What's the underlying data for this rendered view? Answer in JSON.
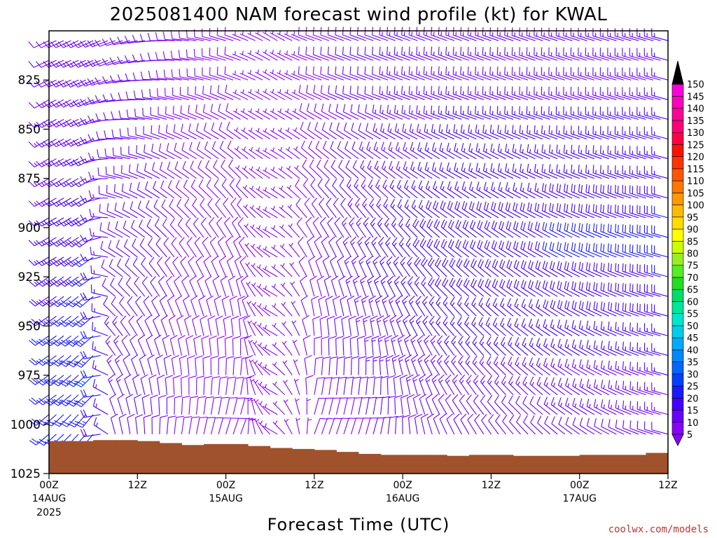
{
  "chart_data": {
    "type": "wind-barb-time-height",
    "title": "2025081400 NAM forecast wind profile (kt) for KWAL",
    "xlabel": "Forecast Time (UTC)",
    "ylabel": "",
    "credit": "coolwx.com/models",
    "y_axis": {
      "quantity": "pressure (mb)",
      "range": [
        1025,
        800
      ],
      "ticks": [
        "825",
        "850",
        "875",
        "900",
        "925",
        "950",
        "975",
        "1000",
        "1025"
      ]
    },
    "x_axis": {
      "quantity": "forecast hour",
      "range": [
        0,
        84
      ],
      "ticks": [
        {
          "hour": 0,
          "time": "00Z",
          "date": "14AUG",
          "year": "2025"
        },
        {
          "hour": 12,
          "time": "12Z",
          "date": "",
          "year": ""
        },
        {
          "hour": 24,
          "time": "00Z",
          "date": "15AUG",
          "year": ""
        },
        {
          "hour": 36,
          "time": "12Z",
          "date": "",
          "year": ""
        },
        {
          "hour": 48,
          "time": "00Z",
          "date": "16AUG",
          "year": ""
        },
        {
          "hour": 60,
          "time": "12Z",
          "date": "",
          "year": ""
        },
        {
          "hour": 72,
          "time": "00Z",
          "date": "17AUG",
          "year": ""
        },
        {
          "hour": 84,
          "time": "12Z",
          "date": "",
          "year": ""
        }
      ]
    },
    "surface_pressure": {
      "hours": [
        0,
        3,
        6,
        9,
        12,
        15,
        18,
        21,
        24,
        27,
        30,
        33,
        36,
        39,
        42,
        45,
        48,
        51,
        54,
        57,
        60,
        63,
        66,
        69,
        72,
        75,
        78,
        81,
        84
      ],
      "values_mb": [
        1008.5,
        1008.5,
        1008,
        1008,
        1008.5,
        1009.5,
        1010.5,
        1010,
        1010,
        1011,
        1012,
        1012.5,
        1013,
        1014,
        1015,
        1015.5,
        1015.5,
        1015.5,
        1016,
        1015.5,
        1015.5,
        1016,
        1016,
        1016,
        1015.5,
        1015.5,
        1015.5,
        1014.5,
        1014.5
      ],
      "color": "#a0522d"
    },
    "wind_barbs": {
      "units": "kt",
      "hour_step": 1,
      "levels_mb": [
        805,
        815,
        825,
        835,
        845,
        855,
        865,
        875,
        885,
        895,
        905,
        915,
        925,
        935,
        945,
        955,
        965,
        975,
        985,
        995,
        1005
      ],
      "profile_time_hours": [
        0,
        6,
        9,
        16,
        26,
        31,
        36,
        44,
        54,
        84
      ],
      "profile_direction_deg": [
        [
          245,
          245,
          250,
          270,
          290,
          300,
          290,
          290,
          290,
          285
        ],
        [
          245,
          245,
          250,
          270,
          290,
          300,
          290,
          290,
          290,
          285
        ],
        [
          245,
          245,
          255,
          275,
          290,
          300,
          290,
          290,
          290,
          285
        ],
        [
          240,
          245,
          260,
          280,
          295,
          300,
          295,
          290,
          290,
          285
        ],
        [
          240,
          245,
          265,
          285,
          300,
          300,
          300,
          295,
          290,
          285
        ],
        [
          240,
          245,
          270,
          290,
          305,
          300,
          305,
          300,
          295,
          285
        ],
        [
          240,
          245,
          275,
          295,
          310,
          300,
          310,
          305,
          300,
          285
        ],
        [
          240,
          240,
          280,
          300,
          315,
          300,
          315,
          310,
          300,
          285
        ],
        [
          240,
          240,
          285,
          305,
          320,
          300,
          320,
          315,
          305,
          285
        ],
        [
          240,
          240,
          290,
          310,
          325,
          300,
          325,
          320,
          305,
          285
        ],
        [
          240,
          235,
          295,
          315,
          330,
          300,
          330,
          325,
          310,
          285
        ],
        [
          240,
          235,
          300,
          320,
          335,
          300,
          335,
          330,
          310,
          285
        ],
        [
          235,
          235,
          305,
          325,
          340,
          300,
          340,
          335,
          315,
          285
        ],
        [
          235,
          230,
          310,
          330,
          345,
          300,
          345,
          340,
          315,
          285
        ],
        [
          235,
          230,
          315,
          335,
          350,
          300,
          350,
          345,
          320,
          285
        ],
        [
          235,
          230,
          320,
          340,
          355,
          300,
          355,
          350,
          320,
          285
        ],
        [
          235,
          225,
          325,
          345,
          0,
          300,
          0,
          355,
          325,
          285
        ],
        [
          235,
          225,
          330,
          350,
          5,
          300,
          5,
          0,
          325,
          285
        ],
        [
          235,
          225,
          335,
          355,
          10,
          300,
          10,
          5,
          330,
          285
        ],
        [
          230,
          220,
          340,
          0,
          15,
          300,
          15,
          10,
          330,
          285
        ],
        [
          230,
          220,
          345,
          5,
          20,
          300,
          20,
          15,
          335,
          285
        ]
      ],
      "profile_speed_kt": [
        [
          12,
          14,
          12,
          10,
          8,
          5,
          8,
          12,
          14,
          15
        ],
        [
          12,
          14,
          12,
          10,
          8,
          5,
          8,
          12,
          14,
          15
        ],
        [
          12,
          14,
          12,
          10,
          8,
          5,
          8,
          12,
          14,
          15
        ],
        [
          12,
          15,
          12,
          10,
          8,
          5,
          8,
          12,
          14,
          15
        ],
        [
          13,
          15,
          12,
          10,
          8,
          5,
          8,
          12,
          15,
          16
        ],
        [
          13,
          15,
          12,
          10,
          8,
          5,
          8,
          12,
          15,
          16
        ],
        [
          13,
          16,
          12,
          10,
          8,
          5,
          8,
          13,
          16,
          17
        ],
        [
          14,
          16,
          12,
          10,
          8,
          5,
          8,
          13,
          16,
          17
        ],
        [
          14,
          17,
          12,
          10,
          9,
          5,
          9,
          14,
          17,
          18
        ],
        [
          15,
          18,
          12,
          10,
          9,
          5,
          9,
          14,
          18,
          20
        ],
        [
          15,
          19,
          12,
          10,
          9,
          5,
          9,
          15,
          19,
          21
        ],
        [
          16,
          20,
          12,
          10,
          9,
          5,
          9,
          15,
          19,
          21
        ],
        [
          17,
          21,
          12,
          10,
          9,
          5,
          9,
          15,
          19,
          20
        ],
        [
          18,
          22,
          12,
          10,
          9,
          5,
          9,
          15,
          18,
          19
        ],
        [
          19,
          23,
          12,
          10,
          9,
          5,
          9,
          14,
          17,
          18
        ],
        [
          20,
          24,
          13,
          10,
          9,
          5,
          9,
          14,
          16,
          17
        ],
        [
          21,
          24,
          13,
          10,
          9,
          5,
          9,
          13,
          15,
          16
        ],
        [
          22,
          25,
          13,
          10,
          9,
          5,
          9,
          13,
          14,
          15
        ],
        [
          22,
          24,
          13,
          10,
          9,
          5,
          9,
          12,
          13,
          14
        ],
        [
          21,
          23,
          12,
          10,
          8,
          5,
          8,
          11,
          12,
          13
        ],
        [
          20,
          22,
          12,
          10,
          8,
          5,
          8,
          10,
          11,
          12
        ]
      ]
    },
    "colorbar": {
      "units": "kt",
      "labels": [
        "5",
        "10",
        "15",
        "20",
        "25",
        "30",
        "35",
        "40",
        "45",
        "50",
        "55",
        "60",
        "65",
        "70",
        "75",
        "80",
        "85",
        "90",
        "95",
        "100",
        "105",
        "110",
        "115",
        "120",
        "125",
        "130",
        "135",
        "140",
        "145",
        "150"
      ],
      "colors": [
        "#8b00ff",
        "#6a00ff",
        "#4400ff",
        "#1a1aff",
        "#0040ff",
        "#0066ff",
        "#0088ff",
        "#00aaff",
        "#00ccee",
        "#00e6cc",
        "#00e699",
        "#00dd66",
        "#22dd22",
        "#55ee22",
        "#99ee22",
        "#ccff00",
        "#ffff00",
        "#ffdd00",
        "#ffbb00",
        "#ff9900",
        "#ff7700",
        "#ff5500",
        "#ff3300",
        "#ff1100",
        "#ff0044",
        "#ff0077",
        "#ff0099",
        "#ff00bb",
        "#ff00dd",
        "#000000"
      ]
    }
  }
}
